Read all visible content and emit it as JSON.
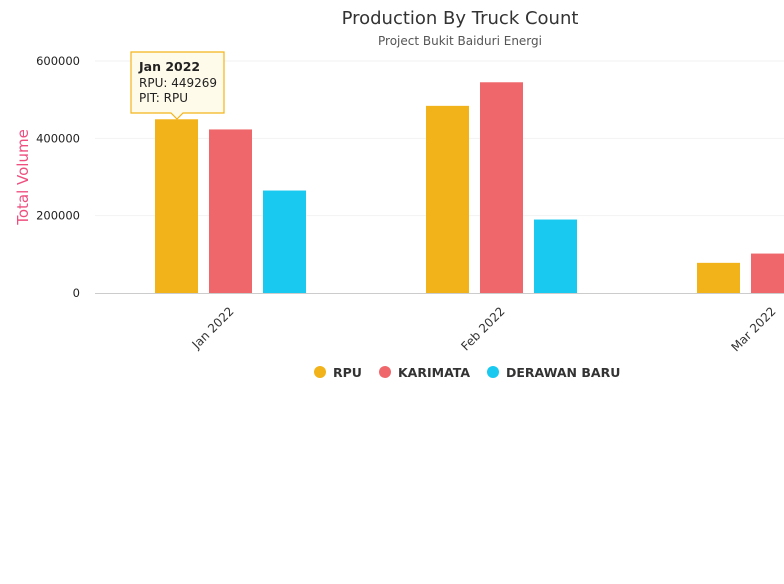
{
  "chart_data": {
    "type": "bar",
    "title": "Production By Truck Count",
    "subtitle": "Project Bukit Baiduri Energi",
    "ylabel": "Total Volume",
    "xlabel": "",
    "categories": [
      "Jan 2022",
      "Feb 2022",
      "Mar 2022"
    ],
    "series": [
      {
        "name": "RPU",
        "color": "#f2b31a",
        "values": [
          449269,
          484000,
          78000
        ]
      },
      {
        "name": "KARIMATA",
        "color": "#f0676b",
        "values": [
          423000,
          545000,
          102000
        ]
      },
      {
        "name": "DERAWAN BARU",
        "color": "#19c9ef",
        "values": [
          265000,
          190000,
          null
        ]
      }
    ],
    "ylim": [
      0,
      600000
    ],
    "yticks": [
      "0",
      "200000",
      "400000",
      "600000"
    ],
    "ylabel_color": "#ee4f7f",
    "legend_position": "bottom",
    "grid": true,
    "tooltip": {
      "title": "Jan 2022",
      "lines": [
        "RPU: 449269",
        "PIT: RPU"
      ],
      "border_color": "#f2b31a"
    }
  }
}
